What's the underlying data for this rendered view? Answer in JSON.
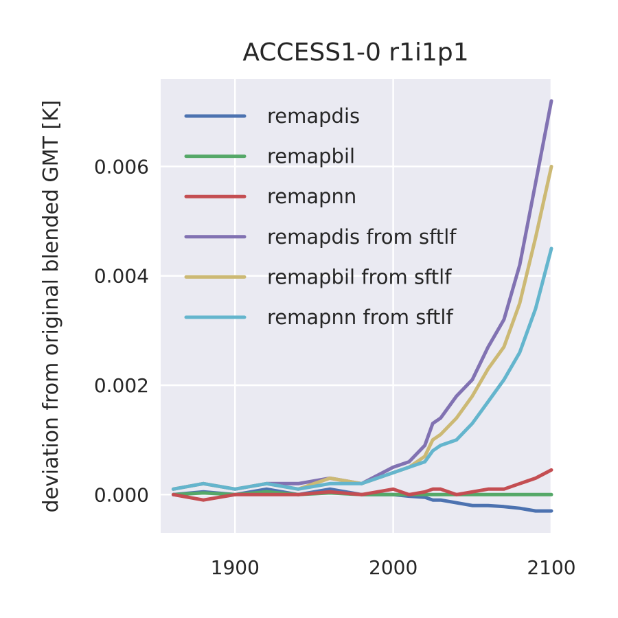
{
  "chart_data": {
    "type": "line",
    "title": "ACCESS1-0 r1i1p1",
    "xlabel": "",
    "ylabel": "deviation from original blended GMT [K]",
    "xlim": [
      1853,
      2100
    ],
    "ylim": [
      -0.0007,
      0.0076
    ],
    "xticks": [
      1900,
      2000,
      2100
    ],
    "xtick_labels": [
      "1900",
      "2000",
      "2100"
    ],
    "yticks": [
      0.0,
      0.002,
      0.004,
      0.006
    ],
    "ytick_labels": [
      "0.000",
      "0.002",
      "0.004",
      "0.006"
    ],
    "grid": true,
    "legend_position": "upper-left",
    "x": [
      1861,
      1880,
      1900,
      1920,
      1940,
      1960,
      1980,
      2000,
      2010,
      2020,
      2025,
      2030,
      2040,
      2050,
      2060,
      2070,
      2080,
      2090,
      2100
    ],
    "series": [
      {
        "name": "remapdis",
        "color": "#4c72b0",
        "values": [
          0.0,
          5e-05,
          0.0,
          0.0001,
          0.0,
          0.0001,
          0.0,
          0.0,
          -3e-05,
          -5e-05,
          -0.0001,
          -0.0001,
          -0.00015,
          -0.0002,
          -0.0002,
          -0.00022,
          -0.00025,
          -0.0003,
          -0.0003
        ]
      },
      {
        "name": "remapbil",
        "color": "#55a868",
        "values": [
          0.0,
          3e-05,
          0.0,
          5e-05,
          0.0,
          3e-05,
          0.0,
          0.0,
          0.0,
          0.0,
          0.0,
          0.0,
          0.0,
          0.0,
          0.0,
          0.0,
          0.0,
          0.0,
          0.0
        ]
      },
      {
        "name": "remapnn",
        "color": "#c44e52",
        "values": [
          0.0,
          -0.0001,
          0.0,
          0.0,
          0.0,
          5e-05,
          0.0,
          0.0001,
          0.0,
          5e-05,
          0.0001,
          0.0001,
          0.0,
          5e-05,
          0.0001,
          0.0001,
          0.0002,
          0.0003,
          0.00045
        ]
      },
      {
        "name": "remapdis from sftlf",
        "color": "#8172b2",
        "values": [
          0.0001,
          0.0002,
          0.0001,
          0.0002,
          0.0002,
          0.0003,
          0.0002,
          0.0005,
          0.0006,
          0.0009,
          0.0013,
          0.0014,
          0.0018,
          0.0021,
          0.0027,
          0.0032,
          0.0042,
          0.0057,
          0.0072
        ]
      },
      {
        "name": "remapbil from sftlf",
        "color": "#ccb974",
        "values": [
          0.0001,
          0.0002,
          0.0001,
          0.0002,
          0.0001,
          0.0003,
          0.0002,
          0.0004,
          0.0005,
          0.0007,
          0.001,
          0.0011,
          0.0014,
          0.0018,
          0.0023,
          0.0027,
          0.0035,
          0.0047,
          0.006
        ]
      },
      {
        "name": "remapnn from sftlf",
        "color": "#64b5cd",
        "values": [
          0.0001,
          0.0002,
          0.0001,
          0.0002,
          0.0001,
          0.0002,
          0.0002,
          0.0004,
          0.0005,
          0.0006,
          0.0008,
          0.0009,
          0.001,
          0.0013,
          0.0017,
          0.0021,
          0.0026,
          0.0034,
          0.0045
        ]
      }
    ]
  }
}
